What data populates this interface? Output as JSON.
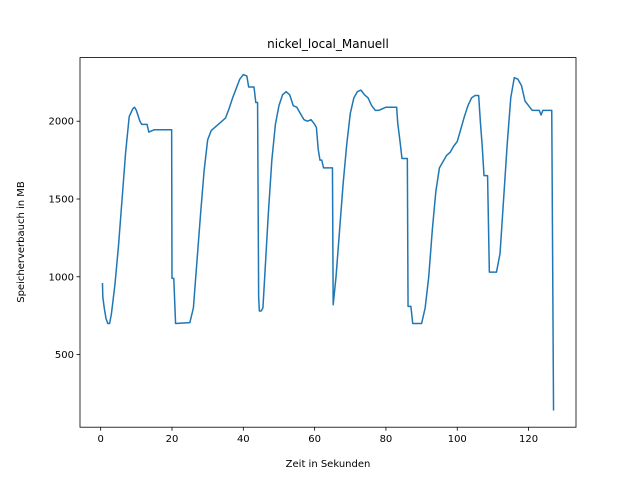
{
  "chart_data": {
    "type": "line",
    "title": "nickel_local_Manuell",
    "xlabel": "Zeit in Sekunden",
    "ylabel": "Speicherverbauch in MB",
    "xlim": [
      -5.8,
      133.3
    ],
    "ylim": [
      33,
      2409
    ],
    "xticks": [
      0,
      20,
      40,
      60,
      80,
      100,
      120
    ],
    "yticks": [
      500,
      1000,
      1500,
      2000
    ],
    "series": [
      {
        "color": "#1f77b4",
        "x": [
          0.5,
          0.6,
          1,
          1.5,
          2,
          2.5,
          3,
          4,
          5,
          6,
          7,
          8,
          9,
          9.5,
          10,
          11,
          11.5,
          13,
          13.5,
          14.5,
          15,
          19.9,
          20,
          20.5,
          21,
          25,
          26,
          27,
          28,
          29,
          30,
          31,
          32,
          33,
          34,
          35,
          36,
          37,
          38,
          39,
          40,
          41,
          41.5,
          43,
          43.5,
          44,
          44.3,
          44.5,
          45,
          45.5,
          46,
          47,
          48,
          49,
          50,
          51,
          52,
          53,
          54,
          55,
          56,
          57,
          58,
          59,
          60,
          60.5,
          61,
          61.5,
          62,
          62.5,
          64,
          65,
          65.2,
          66,
          67,
          68,
          69,
          70,
          71,
          72,
          73,
          74,
          75,
          76,
          77,
          78,
          79,
          80,
          81,
          82,
          83,
          83.3,
          84,
          84.5,
          86,
          86.2,
          87,
          87.5,
          90,
          91,
          92,
          93,
          94,
          95,
          96,
          97,
          98,
          99,
          100,
          101,
          102,
          103,
          104,
          105,
          106,
          106.5,
          107,
          107.5,
          108.5,
          109,
          111,
          112,
          113,
          114,
          115,
          116,
          117,
          118,
          119,
          120,
          121,
          123,
          123.5,
          124,
          126.5,
          127
        ],
        "values": [
          960,
          870,
          800,
          730,
          700,
          700,
          760,
          950,
          1200,
          1500,
          1800,
          2030,
          2080,
          2090,
          2070,
          2000,
          1980,
          1980,
          1930,
          1940,
          1945,
          1945,
          990,
          990,
          700,
          705,
          800,
          1100,
          1400,
          1680,
          1880,
          1940,
          1960,
          1980,
          2000,
          2020,
          2080,
          2150,
          2210,
          2270,
          2300,
          2290,
          2220,
          2220,
          2120,
          2120,
          870,
          780,
          780,
          800,
          1000,
          1400,
          1750,
          1980,
          2100,
          2170,
          2190,
          2170,
          2100,
          2090,
          2050,
          2010,
          2000,
          2010,
          1980,
          1960,
          1820,
          1750,
          1750,
          1700,
          1700,
          1700,
          820,
          1000,
          1300,
          1600,
          1850,
          2050,
          2150,
          2190,
          2200,
          2170,
          2150,
          2100,
          2070,
          2070,
          2080,
          2090,
          2090,
          2090,
          2090,
          1990,
          1860,
          1760,
          1760,
          810,
          810,
          700,
          700,
          800,
          1000,
          1300,
          1550,
          1700,
          1740,
          1780,
          1800,
          1840,
          1870,
          1950,
          2030,
          2100,
          2150,
          2165,
          2165,
          1990,
          1840,
          1650,
          1650,
          1030,
          1030,
          1150,
          1500,
          1850,
          2150,
          2280,
          2270,
          2230,
          2130,
          2100,
          2070,
          2070,
          2040,
          2070,
          2070,
          140
        ]
      }
    ]
  }
}
